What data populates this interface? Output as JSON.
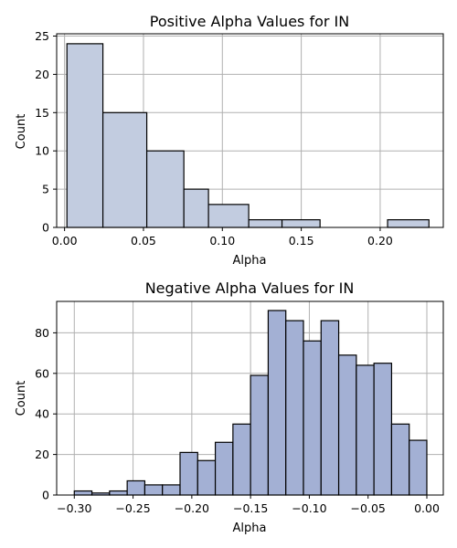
{
  "chart_data": [
    {
      "type": "bar",
      "title": "Positive Alpha Values for IN",
      "xlabel": "Alpha",
      "ylabel": "Count",
      "xlim": [
        -0.005,
        0.24
      ],
      "ylim": [
        0,
        25.3
      ],
      "xticks": [
        0.0,
        0.05,
        0.1,
        0.15,
        0.2
      ],
      "xtick_labels": [
        "0.00",
        "0.05",
        "0.10",
        "0.15",
        "0.20"
      ],
      "yticks": [
        0,
        5,
        10,
        15,
        20,
        25
      ],
      "ytick_labels": [
        "0",
        "5",
        "10",
        "15",
        "20",
        "25"
      ],
      "grid": true,
      "bar_color": "#c2cce0",
      "bins": [
        {
          "x0": 0.0015,
          "x1": 0.0243,
          "count": 24
        },
        {
          "x0": 0.0243,
          "x1": 0.0521,
          "count": 15
        },
        {
          "x0": 0.0521,
          "x1": 0.0756,
          "count": 10
        },
        {
          "x0": 0.0756,
          "x1": 0.0912,
          "count": 5
        },
        {
          "x0": 0.0912,
          "x1": 0.1167,
          "count": 3
        },
        {
          "x0": 0.1167,
          "x1": 0.1378,
          "count": 1
        },
        {
          "x0": 0.1378,
          "x1": 0.1619,
          "count": 1
        },
        {
          "x0": 0.2047,
          "x1": 0.2309,
          "count": 1
        }
      ]
    },
    {
      "type": "bar",
      "title": "Negative Alpha Values for IN",
      "xlabel": "Alpha",
      "ylabel": "Count",
      "xlim": [
        -0.315,
        0.014
      ],
      "ylim": [
        0,
        95.5
      ],
      "xticks": [
        -0.3,
        -0.25,
        -0.2,
        -0.15,
        -0.1,
        -0.05,
        0.0
      ],
      "xtick_labels": [
        "−0.30",
        "−0.25",
        "−0.20",
        "−0.15",
        "−0.10",
        "−0.05",
        "0.00"
      ],
      "yticks": [
        0,
        20,
        40,
        60,
        80
      ],
      "ytick_labels": [
        "0",
        "20",
        "40",
        "60",
        "80"
      ],
      "grid": true,
      "bar_color": "#a3b0d4",
      "bins": [
        {
          "x0": -0.3,
          "x1": -0.285,
          "count": 2
        },
        {
          "x0": -0.285,
          "x1": -0.27,
          "count": 1
        },
        {
          "x0": -0.27,
          "x1": -0.255,
          "count": 2
        },
        {
          "x0": -0.255,
          "x1": -0.24,
          "count": 7
        },
        {
          "x0": -0.24,
          "x1": -0.225,
          "count": 5
        },
        {
          "x0": -0.225,
          "x1": -0.21,
          "count": 5
        },
        {
          "x0": -0.21,
          "x1": -0.195,
          "count": 21
        },
        {
          "x0": -0.195,
          "x1": -0.18,
          "count": 17
        },
        {
          "x0": -0.18,
          "x1": -0.165,
          "count": 26
        },
        {
          "x0": -0.165,
          "x1": -0.15,
          "count": 35
        },
        {
          "x0": -0.15,
          "x1": -0.135,
          "count": 59
        },
        {
          "x0": -0.135,
          "x1": -0.12,
          "count": 91
        },
        {
          "x0": -0.12,
          "x1": -0.105,
          "count": 86
        },
        {
          "x0": -0.105,
          "x1": -0.09,
          "count": 76
        },
        {
          "x0": -0.09,
          "x1": -0.075,
          "count": 86
        },
        {
          "x0": -0.075,
          "x1": -0.06,
          "count": 69
        },
        {
          "x0": -0.06,
          "x1": -0.045,
          "count": 64
        },
        {
          "x0": -0.045,
          "x1": -0.03,
          "count": 65
        },
        {
          "x0": -0.03,
          "x1": -0.015,
          "count": 35
        },
        {
          "x0": -0.015,
          "x1": 0.0,
          "count": 27
        }
      ]
    }
  ]
}
